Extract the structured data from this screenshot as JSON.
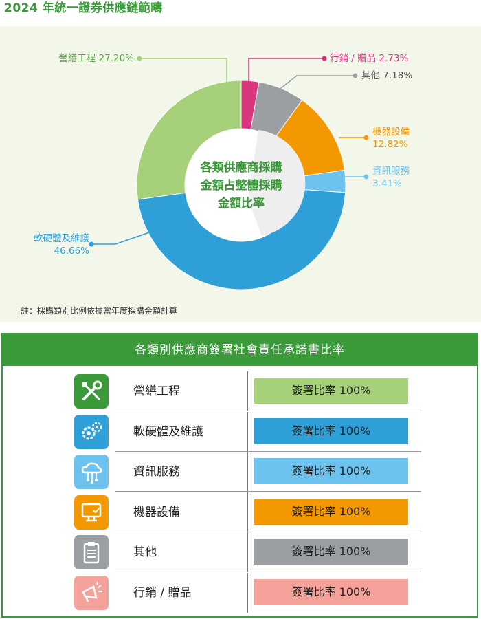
{
  "page_title": "2024 年統一證券供應鏈範疇",
  "chart_data": {
    "type": "pie",
    "title": "各類供應商採購金額占整體採購金額比率",
    "center_label_lines": [
      "各類供應商採購",
      "金額占整體採購",
      "金額比率"
    ],
    "slices": [
      {
        "name": "行銷 / 贈品",
        "value": 2.73,
        "label": "2.73%",
        "color": "#d9367f"
      },
      {
        "name": "其他",
        "value": 7.18,
        "label": "7.18%",
        "color": "#9b9ea2"
      },
      {
        "name": "機器設備",
        "value": 12.82,
        "label": "12.82%",
        "color": "#f39800"
      },
      {
        "name": "資訊服務",
        "value": 3.41,
        "label": "3.41%",
        "color": "#6ec3ee"
      },
      {
        "name": "軟硬體及維護",
        "value": 46.66,
        "label": "46.66%",
        "color": "#2f9fd8"
      },
      {
        "name": "營繕工程",
        "value": 27.2,
        "label": "27.20%",
        "color": "#a6d17a"
      }
    ],
    "note": "註：採購類別比例依據當年度採購金額計算"
  },
  "table": {
    "title": "各類別供應商簽署社會責任承諾書比率",
    "rows": [
      {
        "category": "營繕工程",
        "rate": "簽署比率 100%",
        "icon": "tools-icon",
        "icon_color": "#3a9a3a",
        "bar_color": "#a6d17a"
      },
      {
        "category": "軟硬體及維護",
        "rate": "簽署比率 100%",
        "icon": "gears-icon",
        "icon_color": "#2f9fd8",
        "bar_color": "#2f9fd8"
      },
      {
        "category": "資訊服務",
        "rate": "簽署比率 100%",
        "icon": "cloud-network-icon",
        "icon_color": "#6ec3ee",
        "bar_color": "#6ec3ee"
      },
      {
        "category": "機器設備",
        "rate": "簽署比率 100%",
        "icon": "computer-icon",
        "icon_color": "#f39800",
        "bar_color": "#f39800"
      },
      {
        "category": "其他",
        "rate": "簽署比率 100%",
        "icon": "clipboard-icon",
        "icon_color": "#9b9ea2",
        "bar_color": "#9b9ea2"
      },
      {
        "category": "行銷 / 贈品",
        "rate": "簽署比率 100%",
        "icon": "megaphone-icon",
        "icon_color": "#f5a29a",
        "bar_color": "#f5a29a"
      }
    ]
  }
}
